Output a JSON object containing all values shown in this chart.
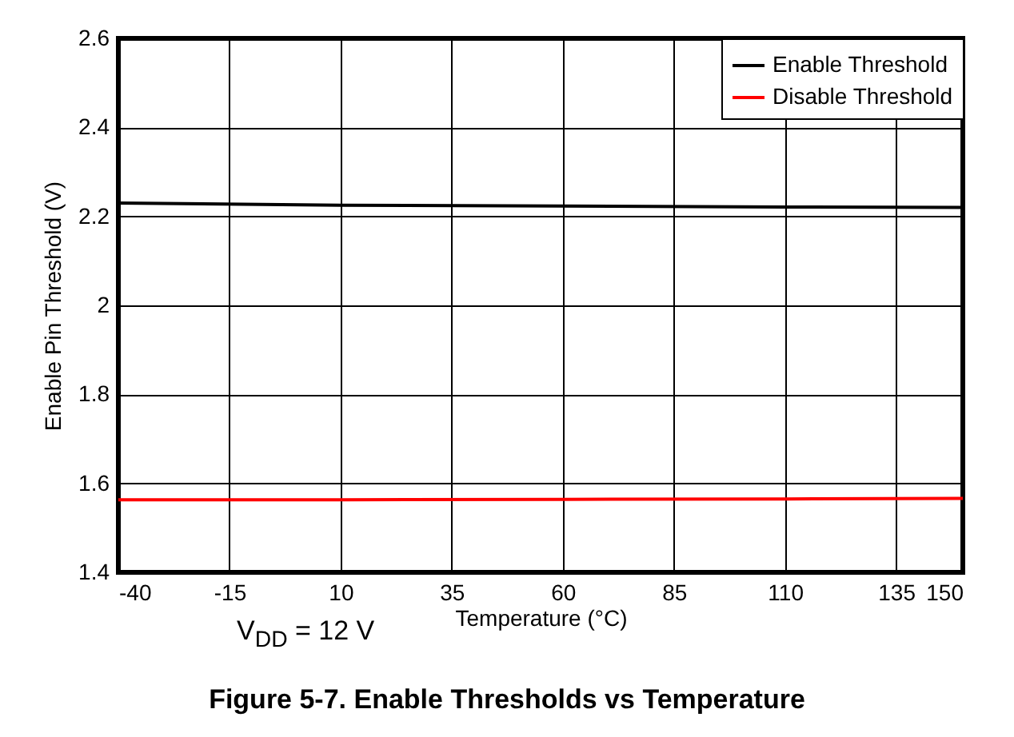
{
  "chart_data": {
    "type": "line",
    "xlabel": "Temperature (°C)",
    "ylabel": "Enable Pin Threshold (V)",
    "xlim": [
      -40,
      150
    ],
    "xticks": [
      -40,
      -15,
      10,
      35,
      60,
      85,
      110,
      135,
      150
    ],
    "ylim": [
      1.4,
      2.6
    ],
    "yticks": [
      1.4,
      1.6,
      1.8,
      2,
      2.2,
      2.4,
      2.6
    ],
    "grid": true,
    "legend": "top right",
    "marker": "none",
    "line_style": "solid",
    "series": [
      {
        "name": "Enable Threshold",
        "color": "#000000",
        "x": [
          -40,
          10,
          60,
          110,
          150
        ],
        "values": [
          2.23,
          2.225,
          2.223,
          2.221,
          2.22
        ]
      },
      {
        "name": "Disable Threshold",
        "color": "#ff0000",
        "x": [
          -40,
          10,
          60,
          110,
          150
        ],
        "values": [
          1.563,
          1.563,
          1.564,
          1.565,
          1.566
        ]
      }
    ],
    "annotations": [
      "V$_{DD}$ = 12 V",
      "Figure 5-7. Enable Thresholds vs Temperature"
    ]
  }
}
